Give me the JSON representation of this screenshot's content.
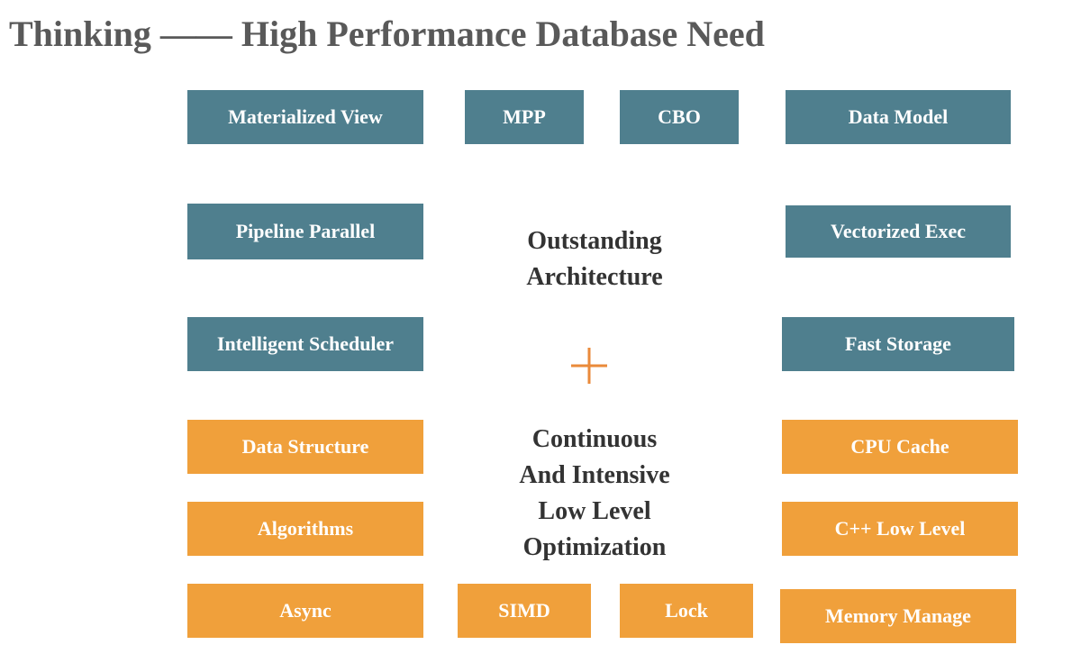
{
  "header": {
    "title": "Thinking —— High Performance Database Need"
  },
  "architecture_boxes": [
    "Materialized View",
    "MPP",
    "CBO",
    "Data Model",
    "Pipeline Parallel",
    "Vectorized Exec",
    "Intelligent Scheduler",
    "Fast Storage"
  ],
  "optimization_boxes": [
    "Data Structure",
    "CPU Cache",
    "Algorithms",
    "C++ Low Level",
    "Async",
    "SIMD",
    "Lock",
    "Memory Manage"
  ],
  "center": {
    "architecture_lines": [
      "Outstanding",
      "Architecture"
    ],
    "optimization_lines": [
      "Continuous",
      "And Intensive",
      "Low Level",
      "Optimization"
    ]
  }
}
